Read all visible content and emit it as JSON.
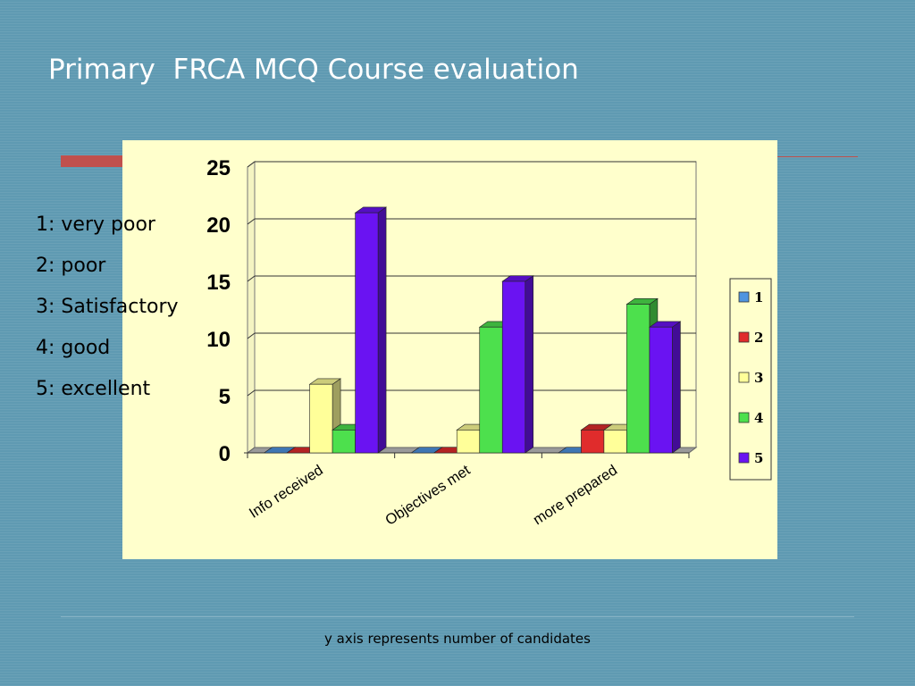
{
  "slide": {
    "title": "Primary  FRCA MCQ Course evaluation",
    "footnote": "y axis represents number of candidates"
  },
  "scale_legend": [
    "1: very poor",
    "2: poor",
    "3: Satisfactory",
    "4: good",
    "5: excellent"
  ],
  "colors": {
    "background": "#5f9ab2",
    "chart_panel": "#ffffcc",
    "accent": "#c0504d"
  },
  "chart_data": {
    "type": "bar",
    "title": "",
    "xlabel": "",
    "ylabel": "",
    "ylim": [
      0,
      25
    ],
    "yticks": [
      0,
      5,
      10,
      15,
      20,
      25
    ],
    "grid": true,
    "legend_position": "right",
    "categories": [
      "Info received",
      "Objectives met",
      "more prepared"
    ],
    "series": [
      {
        "name": "1",
        "color": "#4f94e0",
        "values": [
          0,
          0,
          0
        ]
      },
      {
        "name": "2",
        "color": "#e02c2c",
        "values": [
          0,
          0,
          2
        ]
      },
      {
        "name": "3",
        "color": "#ffff99",
        "values": [
          6,
          2,
          2
        ]
      },
      {
        "name": "4",
        "color": "#4de04d",
        "values": [
          2,
          11,
          13
        ]
      },
      {
        "name": "5",
        "color": "#6a13f2",
        "values": [
          21,
          15,
          11
        ]
      }
    ]
  }
}
